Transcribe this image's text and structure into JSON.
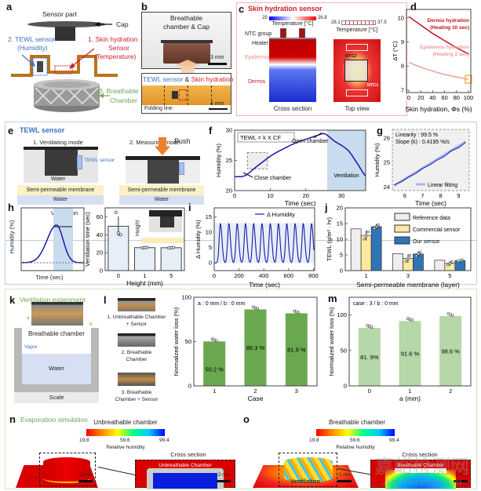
{
  "panels": {
    "a": {
      "letter": "a",
      "sensor_part": "Sensor part",
      "cap": "Cap",
      "tewl": "2. TEWL sensor",
      "tewl_sub": "(Humidity)",
      "skin": "1. Skin hydration",
      "skin_sub1": "Sensor",
      "skin_sub2": "(Temperature)",
      "chamber": "3. Breathable",
      "chamber_sub": "Chamber"
    },
    "b": {
      "letter": "b",
      "photo_label1": "Breathable",
      "photo_label2": "chamber & Cap",
      "scale_top": "3 mm",
      "tewl": "TEWL sensor",
      "amp": " & ",
      "skin": "Skin hydration",
      "folding": "Folding line",
      "scale_bottom": "4 mm"
    },
    "c": {
      "letter": "c",
      "title": "Skin hydration sensor",
      "cb1_min": "25",
      "cb1_max": "26.8",
      "cb1_label": "Temperature [°C]",
      "cb2_min": "28.1",
      "cb2_max": "37.5",
      "cb2_label": "Temperature [°C]",
      "ntc_group": "NTC group",
      "heater": "Heater",
      "epidermis": "Epidermis",
      "dermis": "Dermis",
      "ntc2": "NTC2",
      "ntc1": "NTC1",
      "cross": "Cross section",
      "top": "Top view"
    },
    "d": {
      "letter": "d"
    },
    "e": {
      "letter": "e",
      "title": "TEWL sensor",
      "mode1": "1. Ventilating mode",
      "mode2": "2. Measuring mode",
      "tewl_sensor": "TEWL sensor",
      "push": "Push",
      "water_vapor": "Water",
      "membrane": "Semi-permeable membrane",
      "water": "Water"
    },
    "f": {
      "letter": "f"
    },
    "g": {
      "letter": "g"
    },
    "h": {
      "letter": "h",
      "vent_time1": "Ventilation",
      "vent_time2": "time",
      "ylabel": "Humidity (%)",
      "xlabel": "Time (sec)",
      "inset_label": "Height"
    },
    "i": {
      "letter": "i"
    },
    "j": {
      "letter": "j"
    },
    "k": {
      "letter": "k",
      "title": "Ventilation experiment",
      "a": "a",
      "b": "b",
      "chamber": "Breathable chamber",
      "vapor": "Vapor",
      "water": "Water",
      "scale": "Scale"
    },
    "l": {
      "letter": "l",
      "case1a": "1. Unbreathable Chamber",
      "case1b": "+ Sensor",
      "case2a": "2. Breathable",
      "case2b": "Chamber",
      "case3a": "3. Breathable",
      "case3b": "Chamber + Sensor"
    },
    "m": {
      "letter": "m"
    },
    "n": {
      "letter": "n",
      "title": "Evaporation simulation",
      "subtitle": "Unbreathable chamber",
      "cb_min": "19.8",
      "cb_mid": "59.6",
      "cb_max": "99.4",
      "cb_label": "Relative humidity",
      "cross": "Cross section",
      "inner": "Unbreathable Chamber",
      "scale": "2 mm",
      "scale2": "2 mm"
    },
    "o": {
      "letter": "o",
      "subtitle": "Breathable chamber",
      "cb_min": "19.8",
      "cb_mid": "59.6",
      "cb_max": "99.4",
      "cb_label": "Relative humidity",
      "cross": "Cross section",
      "inner": "Breathable Chamber",
      "ventilation": "Ventilation",
      "scale": "2 mm",
      "scale2": "2 mm"
    }
  },
  "watermark": {
    "cn": "嘉峪检测网",
    "en": "AnyTesting.com"
  },
  "colors": {
    "red": "#d0202a",
    "blue": "#3d6fc4",
    "green": "#6aa84f",
    "dark_green": "#6aa84f",
    "light_green": "#b6d7a8",
    "line_blue": "#1a1aa8"
  },
  "chart_data": [
    {
      "id": "d",
      "type": "line",
      "xlabel": "Skin hydration, Φs (%)",
      "ylabel": "ΔT (°C)",
      "xlim": [
        -4,
        104
      ],
      "ylim": [
        6.9,
        10.35
      ],
      "xticks": [
        0,
        20,
        40,
        60,
        80,
        100
      ],
      "yticks": [
        7,
        8,
        9,
        10
      ],
      "x": [
        0,
        20,
        40,
        60,
        80,
        100
      ],
      "series": [
        {
          "name": "Dermis hydration",
          "label_lines": [
            "Dermis hydration",
            "(Heating 10 sec)"
          ],
          "values": [
            10.05,
            9.7,
            9.35,
            9.05,
            8.76,
            8.5
          ],
          "color": "#c0141c"
        },
        {
          "name": "Epidermis hydration",
          "label_lines": [
            "Epidermis hydration",
            "(Heating 2 sec)"
          ],
          "values": [
            8.15,
            7.95,
            7.79,
            7.65,
            7.54,
            7.45
          ],
          "color": "#f39a9a"
        }
      ],
      "highlight": {
        "x": 100,
        "y": 7.45,
        "color": "#f5a623"
      }
    },
    {
      "id": "f",
      "type": "line",
      "xlabel": "Time (sec)",
      "ylabel": "Humidity (%)",
      "xlim": [
        0,
        36.8
      ],
      "ylim": [
        20,
        30
      ],
      "xticks": [
        0,
        10,
        20,
        30
      ],
      "yticks": [
        20,
        25,
        30
      ],
      "x": [
        0,
        1,
        2,
        3,
        4,
        6,
        8,
        10,
        12,
        14,
        16,
        18,
        20,
        22,
        24,
        25,
        26,
        27,
        28,
        30,
        31,
        32,
        33,
        34,
        35,
        36,
        36.8
      ],
      "values": [
        22.3,
        22.3,
        22.3,
        22.5,
        22.9,
        23.9,
        24.8,
        25.7,
        26.4,
        27.0,
        27.6,
        28.1,
        28.5,
        28.9,
        29.3,
        29.5,
        29.2,
        28.7,
        28.2,
        27.5,
        27.1,
        26.6,
        25.8,
        24.9,
        24.0,
        23.0,
        22.4
      ],
      "ventilation_range": [
        26,
        36.8
      ],
      "zoom_box": {
        "x": [
          3.6,
          9.2
        ],
        "y": [
          23.6,
          26.3
        ]
      },
      "annotations": {
        "formula": "TEWL = k X CF",
        "open": "Open chamber",
        "close": "Close chamber",
        "ventilation": "Ventilation"
      }
    },
    {
      "id": "g",
      "type": "line",
      "xlabel": "Time (sec)",
      "ylabel": "Humidity (%)",
      "xlim": [
        5.3,
        9.6
      ],
      "ylim": [
        23.85,
        26.35
      ],
      "xticks": [
        6,
        7,
        8,
        9
      ],
      "yticks": [
        24,
        25,
        26
      ],
      "x": [
        5.4,
        5.8,
        6.2,
        6.6,
        7.0,
        7.4,
        7.8,
        8.2,
        8.6,
        9.0,
        9.4
      ],
      "values": [
        24.08,
        24.22,
        24.4,
        24.55,
        24.76,
        24.9,
        25.1,
        25.24,
        25.48,
        25.6,
        25.82
      ],
      "fit": {
        "x": [
          5.4,
          9.4
        ],
        "y": [
          24.05,
          25.85
        ]
      },
      "annotations": [
        "Linearity : 99.5 %",
        "Slope (k) : 0.4195 %/s"
      ],
      "legend": "Linear fitting"
    },
    {
      "id": "h",
      "type": "bar",
      "xlabel": "Height (mm)",
      "ylabel": "Ventilation time (sec)",
      "categories": [
        "0",
        "1",
        "5"
      ],
      "values": [
        49.5,
        25.6,
        25.5
      ],
      "errors": [
        11,
        0.4,
        0.4
      ],
      "points": [
        [
          65,
          42,
          40
        ],
        [
          25.3,
          25.6,
          25.9
        ],
        [
          25.2,
          25.5,
          25.7
        ]
      ],
      "ylim": [
        0,
        70
      ],
      "yticks": [
        0,
        20,
        40,
        60
      ]
    },
    {
      "id": "i",
      "type": "line",
      "xlabel": "Time (sec)",
      "ylabel": "Δ Humidity (%)",
      "legend": "Δ Humidity",
      "xlim": [
        0,
        810
      ],
      "ylim": [
        -2.5,
        18
      ],
      "xticks": [
        0,
        200,
        400,
        600,
        800
      ],
      "yticks": [
        0,
        5,
        10,
        15
      ],
      "peaks_x": [
        50,
        118,
        185,
        252,
        318,
        385,
        452,
        518,
        585,
        652,
        718,
        785
      ],
      "peak_value": 12.8,
      "baseline": 0
    },
    {
      "id": "j",
      "type": "bar",
      "xlabel": "Semi-permeable membrane (layer)",
      "ylabel": "TEWL (g/m² · hr)",
      "categories": [
        "1",
        "3",
        "5"
      ],
      "ylim": [
        0,
        20
      ],
      "yticks": [
        0,
        5,
        10,
        15,
        20
      ],
      "series": [
        {
          "name": "Reference data",
          "values": [
            13.3,
            5.4,
            3.3
          ],
          "errors": [
            0,
            0,
            0
          ],
          "color": "#eeeeee"
        },
        {
          "name": "Commercial sensor",
          "values": [
            11.2,
            3.9,
            2.3
          ],
          "errors": [
            1.6,
            1.3,
            0.7
          ],
          "color": "#fde8a0"
        },
        {
          "name": "Our sensor",
          "values": [
            14.0,
            5.3,
            3.2
          ],
          "errors": [
            0.8,
            0.9,
            0.3
          ],
          "color": "#2e75b6"
        }
      ]
    },
    {
      "id": "l",
      "type": "bar",
      "xlabel": "Case",
      "ylabel": "Normalized water loss (%)",
      "categories": [
        "1",
        "2",
        "3"
      ],
      "values": [
        50.2,
        86.3,
        81.9
      ],
      "labels": [
        "50.2 %",
        "86.3 %",
        "81.9 %"
      ],
      "ylim": [
        0,
        100
      ],
      "yticks": [
        0,
        50,
        100
      ],
      "annotation": "a : 0 mm  /  b : 0 mm",
      "color": "#6aa84f"
    },
    {
      "id": "m",
      "type": "bar",
      "xlabel": "a (mm)",
      "ylabel": "Normalized water loss (%)",
      "categories": [
        "0",
        "1",
        "2"
      ],
      "values": [
        81.9,
        91.6,
        98.6
      ],
      "labels": [
        "81. 9%",
        "91.6 %",
        "98.6 %"
      ],
      "ylim": [
        0,
        125
      ],
      "yticks": [
        0,
        50,
        100
      ],
      "annotation": "case : 3 / b : 0 mm",
      "color": "#b6d7a8"
    }
  ]
}
